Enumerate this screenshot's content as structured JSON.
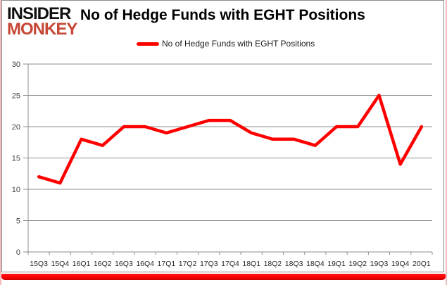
{
  "brand": {
    "line1": "INSIDER",
    "line2": "MONKEY",
    "line2_color": "#C74634"
  },
  "header": {
    "title": "No of Hedge Funds with EGHT Positions"
  },
  "legend": {
    "label": "No of Hedge Funds with EGHT Positions",
    "line_color": "#FF0000"
  },
  "chart_data": {
    "type": "line",
    "title": "No of Hedge Funds with EGHT Positions",
    "categories": [
      "15Q3",
      "15Q4",
      "16Q1",
      "16Q2",
      "16Q3",
      "16Q4",
      "17Q1",
      "17Q2",
      "17Q3",
      "17Q4",
      "18Q1",
      "18Q2",
      "18Q3",
      "18Q4",
      "19Q1",
      "19Q2",
      "19Q3",
      "19Q4",
      "20Q1"
    ],
    "series": [
      {
        "name": "No of Hedge Funds with EGHT Positions",
        "color": "#FF0000",
        "values": [
          12,
          11,
          18,
          17,
          20,
          20,
          19,
          20,
          21,
          21,
          19,
          18,
          18,
          17,
          20,
          20,
          25,
          14,
          20
        ]
      }
    ],
    "xlabel": "",
    "ylabel": "",
    "ylim": [
      0,
      30
    ],
    "ytick_interval": 5,
    "grid": true,
    "legend_position": "top"
  },
  "colors": {
    "grid_line": "#8C8C8C",
    "axis_line": "#8C8C8C",
    "axis_text": "#3F3F3F",
    "footer_bar": "#FF0000"
  }
}
